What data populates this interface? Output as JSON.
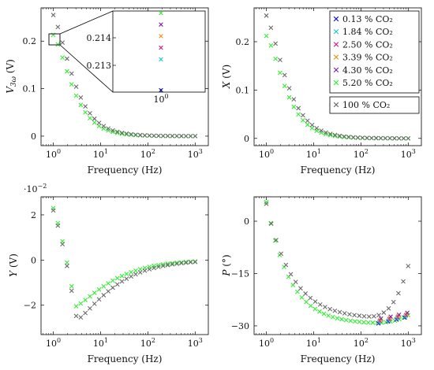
{
  "colors": {
    "0.13": "#1010c8",
    "1.84": "#17c7c7",
    "2.50": "#d81b8c",
    "3.39": "#f0901a",
    "4.30": "#7a1fa2",
    "5.20": "#33ee33",
    "100": "#6a6a6a"
  },
  "legend": {
    "entries": [
      {
        "key": "0.13",
        "label": "0.13 % CO₂"
      },
      {
        "key": "1.84",
        "label": "1.84 % CO₂"
      },
      {
        "key": "2.50",
        "label": "2.50 % CO₂"
      },
      {
        "key": "3.39",
        "label": "3.39 % CO₂"
      },
      {
        "key": "4.30",
        "label": "4.30 % CO₂"
      },
      {
        "key": "5.20",
        "label": "5.20 % CO₂"
      }
    ],
    "reference": {
      "key": "100",
      "label": "100 % CO₂"
    }
  },
  "inset": {
    "y_ticks": [
      "0.214",
      "0.213"
    ],
    "x_tick": "10^0",
    "ylim": [
      0.2124,
      0.2145
    ],
    "values": [
      {
        "key": "5.20",
        "y": 0.21445
      },
      {
        "key": "4.30",
        "y": 0.21415
      },
      {
        "key": "3.39",
        "y": 0.21385
      },
      {
        "key": "2.50",
        "y": 0.21355
      },
      {
        "key": "1.84",
        "y": 0.21325
      },
      {
        "key": "0.13",
        "y": 0.21245
      }
    ]
  },
  "chart_data": [
    {
      "type": "scatter",
      "xscale": "log",
      "xlabel": "Frequency (Hz)",
      "ylabel": "V3ω (V)",
      "xlim": [
        0.55,
        1900
      ],
      "ylim": [
        -0.02,
        0.27
      ],
      "yticks": [
        0,
        0.1,
        0.2
      ],
      "ytick_labels": [
        "0",
        "0.1",
        "0.2"
      ],
      "series": [
        {
          "key": "5.20",
          "model": "tail",
          "a": 0.213,
          "p": 1.3
        },
        {
          "key": "100",
          "model": "tail",
          "a": 0.255,
          "p": 1.25
        }
      ]
    },
    {
      "type": "scatter",
      "xscale": "log",
      "xlabel": "Frequency (Hz)",
      "ylabel": "X (V)",
      "xlim": [
        0.55,
        1900
      ],
      "ylim": [
        -0.015,
        0.27
      ],
      "yticks": [
        0,
        0.1,
        0.2
      ],
      "ytick_labels": [
        "0",
        "0.1",
        "0.2"
      ],
      "series": [
        {
          "key": "5.20",
          "model": "tail",
          "a": 0.212,
          "p": 1.3
        },
        {
          "key": "100",
          "model": "tail",
          "a": 0.254,
          "p": 1.25
        }
      ]
    },
    {
      "type": "scatter",
      "xscale": "log",
      "xlabel": "Frequency (Hz)",
      "ylabel": "Y (V)",
      "y_multiplier": "·10^-2",
      "xlim": [
        0.55,
        1900
      ],
      "ylim": [
        -3.3,
        2.8
      ],
      "yticks": [
        2,
        0,
        -2
      ],
      "ytick_labels": [
        "2",
        "0",
        "−2"
      ],
      "series": [
        {
          "key": "5.20",
          "model": "dip",
          "f0": 3.0,
          "m": -2.05,
          "c": 2.3
        },
        {
          "key": "100",
          "model": "dip",
          "f0": 3.2,
          "m": -2.65,
          "c": 2.2
        }
      ]
    },
    {
      "type": "scatter",
      "xscale": "log",
      "xlabel": "Frequency (Hz)",
      "ylabel": "P (°)",
      "xlim": [
        0.55,
        1900
      ],
      "ylim": [
        -32.5,
        7
      ],
      "yticks": [
        0,
        -15,
        -30
      ],
      "ytick_labels": [
        "0",
        "−15",
        "−30"
      ],
      "series": [
        {
          "key": "5.20",
          "model": "phase",
          "c": 5.5,
          "m": -29.5,
          "w": 0.95,
          "up": 2.5,
          "n": 33
        },
        {
          "key": "100",
          "model": "phase",
          "c": 5.0,
          "m": -28.0,
          "w": 1.05,
          "up": 15.0,
          "n": 30
        }
      ]
    }
  ]
}
